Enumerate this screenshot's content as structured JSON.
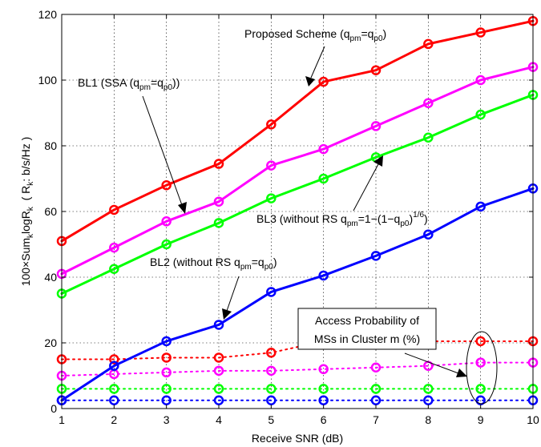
{
  "chart_data": {
    "type": "line",
    "xlabel": "Receive  SNR (dB)",
    "ylabel": "100×Sum",
    "ylabel_parts": {
      "main": "100×Sum",
      "sub_k1": "k",
      "log": "logR",
      "sub_k2": "k",
      "paren_open": "  ( R",
      "sub_k3": "k",
      "paren_rest": ": b/s/Hz )"
    },
    "xlim": [
      1,
      10
    ],
    "ylim": [
      0,
      120
    ],
    "xticks": [
      "1",
      "2",
      "3",
      "4",
      "5",
      "6",
      "7",
      "8",
      "9",
      "10"
    ],
    "yticks": [
      "0",
      "20",
      "40",
      "60",
      "80",
      "100",
      "120"
    ],
    "grid": true,
    "x": [
      1,
      2,
      3,
      4,
      5,
      6,
      7,
      8,
      9,
      10
    ],
    "series": [
      {
        "key": "proposed",
        "style": "solid",
        "color": "#ff0000",
        "values": [
          51,
          60.5,
          68,
          74.5,
          86.5,
          99.5,
          103,
          111,
          114.5,
          118
        ]
      },
      {
        "key": "bl1",
        "style": "solid",
        "color": "#ff00ff",
        "values": [
          41,
          49,
          57,
          63,
          74,
          79,
          86,
          93,
          100,
          104
        ]
      },
      {
        "key": "bl3",
        "style": "solid",
        "color": "#00ff00",
        "values": [
          35,
          42.5,
          50,
          56.5,
          64,
          70,
          76.5,
          82.5,
          89.5,
          95.5
        ]
      },
      {
        "key": "bl2",
        "style": "solid",
        "color": "#0000ff",
        "values": [
          2.5,
          13,
          20.5,
          25.5,
          35.5,
          40.5,
          46.5,
          53,
          61.5,
          67
        ]
      },
      {
        "key": "p_proposed",
        "style": "dotted",
        "color": "#ff0000",
        "values": [
          15,
          15,
          15.5,
          15.5,
          17,
          20.5,
          20.5,
          20.5,
          20.5,
          20.5
        ]
      },
      {
        "key": "p_bl1",
        "style": "dotted",
        "color": "#ff00ff",
        "values": [
          10,
          10.5,
          11,
          11.5,
          11.5,
          12,
          12.5,
          13,
          14,
          14
        ]
      },
      {
        "key": "p_bl3",
        "style": "dotted",
        "color": "#00ff00",
        "values": [
          6,
          6,
          6,
          6,
          6,
          6,
          6,
          6,
          6,
          6
        ]
      },
      {
        "key": "p_bl2",
        "style": "dotted",
        "color": "#0000ff",
        "values": [
          2.5,
          2.5,
          2.5,
          2.5,
          2.5,
          2.5,
          2.5,
          2.5,
          2.5,
          2.5
        ]
      }
    ],
    "annotations": {
      "proposed": {
        "main": "Proposed Scheme (q",
        "s1": "pm",
        "mid": "=q",
        "s2": "p0",
        "end": ")"
      },
      "bl1": {
        "main": "BL1 (SSA (q",
        "s1": "pm",
        "mid": "=q",
        "s2": "p0",
        "end": "))"
      },
      "bl3": {
        "main": "BL3 (without RS q",
        "s1": "pm",
        "mid": "=1−(1−q",
        "s2": "p0",
        "end": ")",
        "sup": "1/6",
        "tail": ")"
      },
      "bl2": {
        "main": "BL2 (without RS q",
        "s1": "pm",
        "mid": "=q",
        "s2": "p0",
        "end": ")"
      },
      "access_line1": "Access Probability of",
      "access_line2": "MSs in Cluster m (%)"
    }
  }
}
